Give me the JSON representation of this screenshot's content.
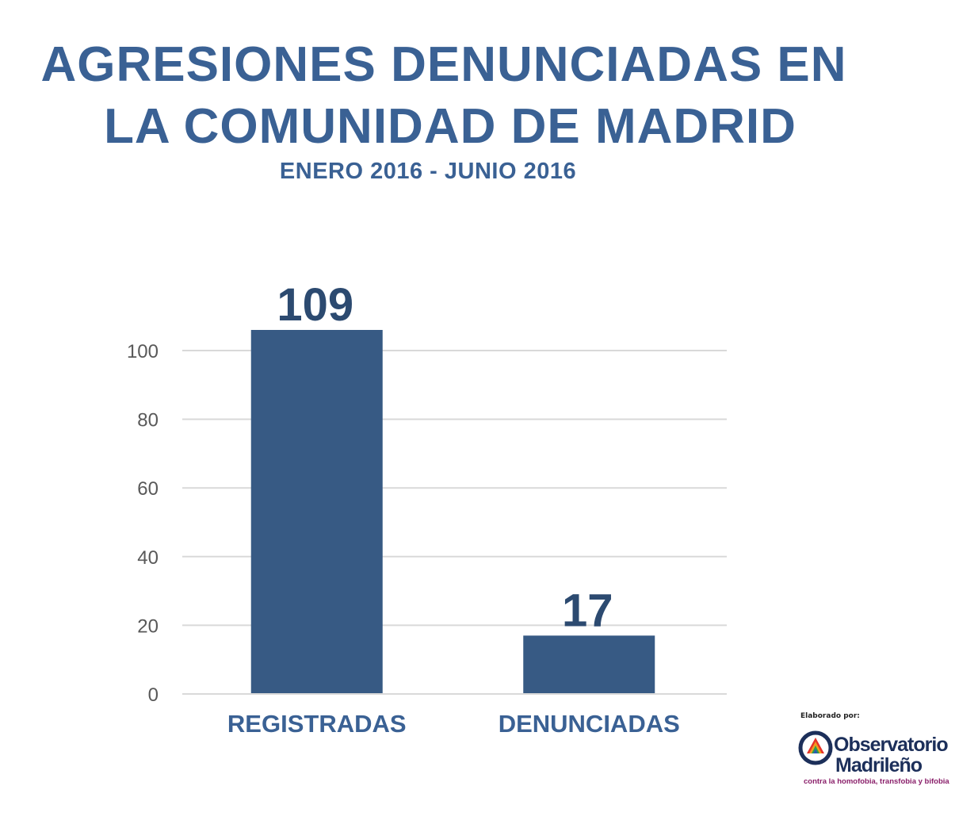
{
  "title_lines": [
    "AGRESIONES DENUNCIADAS EN",
    "LA COMUNIDAD DE MADRID"
  ],
  "subtitle": "ENERO 2016 - JUNIO 2016",
  "colors": {
    "bar": "#375a84",
    "title": "#3a6194",
    "grid": "#d9d9d9",
    "tick": "#595959",
    "data_label": "#2c4a70"
  },
  "chart_data": {
    "type": "bar",
    "title": "AGRESIONES DENUNCIADAS EN LA COMUNIDAD DE MADRID",
    "subtitle": "ENERO 2016 - JUNIO 2016",
    "categories": [
      "REGISTRADAS",
      "DENUNCIADAS"
    ],
    "values": [
      109,
      17
    ],
    "data_labels": [
      "109",
      "17"
    ],
    "xlabel": "",
    "ylabel": "",
    "ylim": [
      0,
      100
    ],
    "yticks": [
      0,
      20,
      40,
      60,
      80,
      100
    ],
    "grid": true,
    "legend": "none"
  },
  "logo": {
    "caption": "Elaborado por:",
    "name_line_1": "Observatorio",
    "name_line_2": "Madrileño",
    "tagline": "contra la homofobia, transfobia y bifobia"
  }
}
